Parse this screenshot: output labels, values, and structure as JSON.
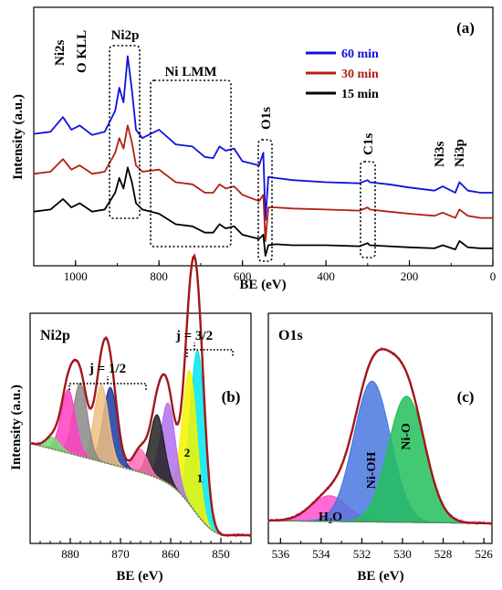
{
  "chart_data": [
    {
      "type": "line",
      "panel_label": "(a)",
      "xlabel": "BE (eV)",
      "ylabel": "Intensity (a.u.)",
      "xlim": [
        1100,
        0
      ],
      "x_ticks": [
        1000,
        800,
        600,
        400,
        200,
        0
      ],
      "legend_position": "top-center",
      "series": [
        {
          "name": "60 min",
          "color": "#1010e0",
          "x": [
            1100,
            1060,
            1030,
            1010,
            990,
            960,
            930,
            905,
            895,
            885,
            875,
            865,
            855,
            840,
            800,
            760,
            720,
            690,
            670,
            655,
            640,
            620,
            600,
            560,
            550,
            545,
            538,
            520,
            480,
            400,
            320,
            300,
            295,
            250,
            200,
            140,
            120,
            90,
            80,
            60,
            30,
            0
          ],
          "y": [
            96,
            98,
            112,
            100,
            104,
            95,
            98,
            118,
            140,
            126,
            170,
            138,
            100,
            92,
            100,
            86,
            84,
            74,
            73,
            84,
            80,
            82,
            70,
            66,
            78,
            14,
            55,
            54,
            52,
            50,
            49,
            52,
            50,
            48,
            45,
            42,
            46,
            40,
            50,
            42,
            40,
            40
          ]
        },
        {
          "name": "30 min",
          "color": "#b22010",
          "x": [
            1100,
            1060,
            1030,
            1010,
            990,
            960,
            930,
            905,
            895,
            885,
            875,
            865,
            855,
            840,
            800,
            760,
            720,
            690,
            670,
            655,
            640,
            620,
            600,
            560,
            550,
            545,
            538,
            520,
            480,
            400,
            320,
            300,
            295,
            250,
            200,
            140,
            120,
            90,
            80,
            60,
            30,
            0
          ],
          "y": [
            58,
            60,
            72,
            62,
            66,
            58,
            60,
            78,
            92,
            82,
            104,
            88,
            66,
            60,
            62,
            50,
            48,
            40,
            40,
            48,
            44,
            46,
            38,
            32,
            38,
            -6,
            26,
            26,
            25,
            24,
            23,
            26,
            24,
            22,
            20,
            18,
            21,
            16,
            24,
            18,
            16,
            16
          ]
        },
        {
          "name": "15 min",
          "color": "#000000",
          "x": [
            1100,
            1060,
            1030,
            1010,
            990,
            960,
            930,
            905,
            895,
            885,
            875,
            865,
            855,
            840,
            800,
            760,
            720,
            690,
            670,
            655,
            640,
            620,
            600,
            560,
            550,
            545,
            538,
            520,
            480,
            400,
            320,
            300,
            295,
            250,
            200,
            140,
            120,
            90,
            80,
            60,
            30,
            0
          ],
          "y": [
            22,
            24,
            34,
            26,
            30,
            22,
            24,
            40,
            54,
            44,
            64,
            50,
            30,
            24,
            20,
            10,
            8,
            2,
            2,
            10,
            6,
            8,
            0,
            -4,
            0,
            -20,
            -10,
            -9,
            -10,
            -10,
            -11,
            -8,
            -10,
            -11,
            -12,
            -13,
            -10,
            -14,
            -6,
            -12,
            -13,
            -13
          ]
        }
      ],
      "annotations": [
        "Ni2s",
        "O KLL",
        "Ni2p",
        "Ni LMM",
        "O1s",
        "C1s",
        "Ni3s",
        "Ni3p"
      ]
    },
    {
      "type": "area",
      "panel_label": "(b)",
      "title": "Ni2p",
      "xlabel": "BE (eV)",
      "ylabel": "Intensity (a.u.)",
      "xlim": [
        888,
        844
      ],
      "x_ticks": [
        880,
        870,
        860,
        850
      ],
      "annotations": [
        "j = 1/2",
        "j = 3/2",
        "1",
        "2"
      ],
      "peaks": [
        {
          "center": 854.6,
          "height": 0.86,
          "color": "#00e5ee"
        },
        {
          "center": 856.2,
          "height": 0.7,
          "color": "#f5f500"
        },
        {
          "center": 860.5,
          "height": 0.42,
          "color": "#b070f0"
        },
        {
          "center": 862.7,
          "height": 0.33,
          "color": "#222222"
        },
        {
          "center": 866.0,
          "height": 0.12,
          "color": "#ff70b0"
        },
        {
          "center": 872.0,
          "height": 0.4,
          "color": "#1a3aa0"
        },
        {
          "center": 873.8,
          "height": 0.4,
          "color": "#f0c080"
        },
        {
          "center": 878.0,
          "height": 0.38,
          "color": "#8a8a8a"
        },
        {
          "center": 880.4,
          "height": 0.33,
          "color": "#ff40c0"
        },
        {
          "center": 883.5,
          "height": 0.06,
          "color": "#70e070"
        }
      ],
      "fit_color": "#a01818",
      "raw_color": "#ff30e0"
    },
    {
      "type": "area",
      "panel_label": "(c)",
      "title": "O1s",
      "xlabel": "BE (eV)",
      "xlim": [
        536.6,
        525.6
      ],
      "x_ticks": [
        536,
        534,
        532,
        530,
        528,
        526
      ],
      "peaks": [
        {
          "center": 533.6,
          "height": 0.14,
          "color": "#ff50d0",
          "label": "H₂O"
        },
        {
          "center": 531.5,
          "height": 0.77,
          "color": "#4a78e0",
          "label": "Ni-OH"
        },
        {
          "center": 529.8,
          "height": 0.69,
          "color": "#22c05a",
          "label": "Ni-O"
        }
      ],
      "fit_color": "#a01818",
      "raw_color": "#ff30e0"
    }
  ]
}
